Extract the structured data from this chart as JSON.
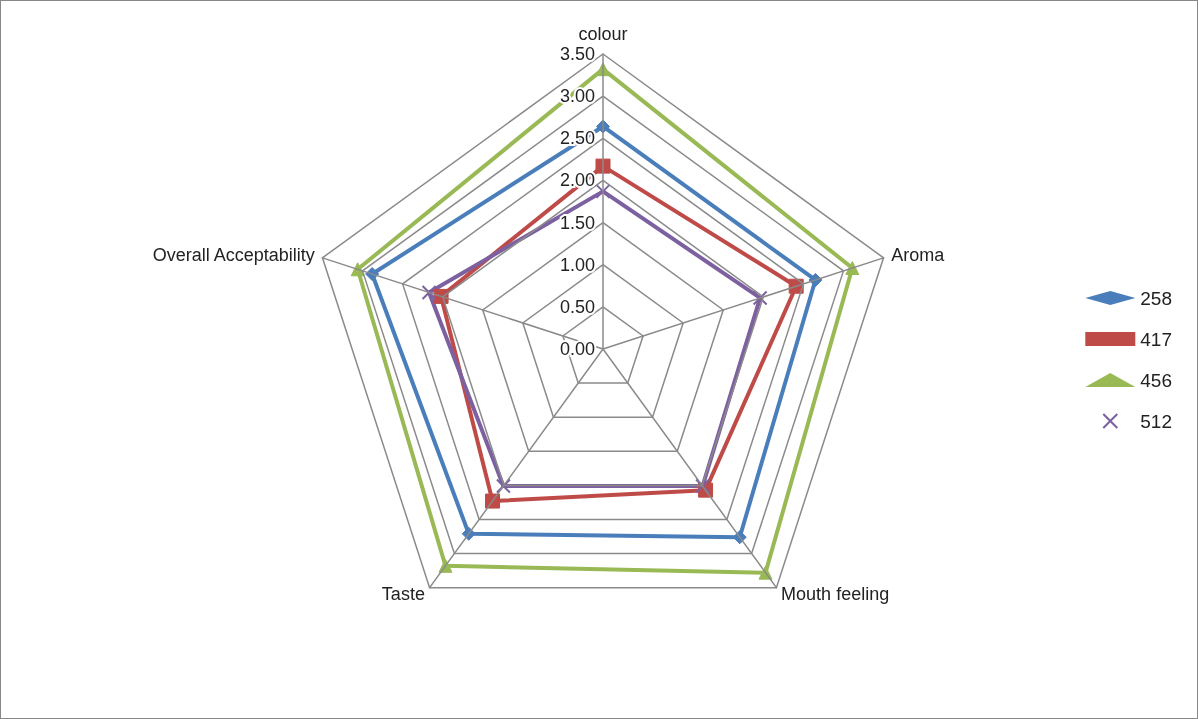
{
  "chart_data": {
    "type": "radar",
    "categories": [
      "colour",
      "Aroma",
      "Mouth feeling",
      "Taste",
      "Overall Acceptability"
    ],
    "series": [
      {
        "name": "258",
        "color": "#4a7ebb",
        "marker": "diamond",
        "values": [
          2.64,
          2.65,
          2.76,
          2.71,
          2.88
        ]
      },
      {
        "name": "417",
        "color": "#be4b48",
        "marker": "square",
        "values": [
          2.17,
          2.41,
          2.07,
          2.23,
          2.02
        ]
      },
      {
        "name": "456",
        "color": "#98b954",
        "marker": "triangle",
        "values": [
          3.32,
          3.11,
          3.28,
          3.18,
          3.06
        ]
      },
      {
        "name": "512",
        "color": "#7d60a0",
        "marker": "cross",
        "values": [
          1.87,
          1.96,
          2.01,
          2.01,
          2.17
        ]
      }
    ],
    "ylim": [
      0,
      3.5
    ],
    "yticks": [
      {
        "value": 0,
        "label": "0.00"
      },
      {
        "value": 0.5,
        "label": "0.50"
      },
      {
        "value": 1,
        "label": "1.00"
      },
      {
        "value": 1.5,
        "label": "1.50"
      },
      {
        "value": 2,
        "label": "2.00"
      },
      {
        "value": 2.5,
        "label": "2.50"
      },
      {
        "value": 3,
        "label": "3.00"
      },
      {
        "value": 3.5,
        "label": "3.50"
      }
    ],
    "grid": true,
    "legend": "right"
  }
}
